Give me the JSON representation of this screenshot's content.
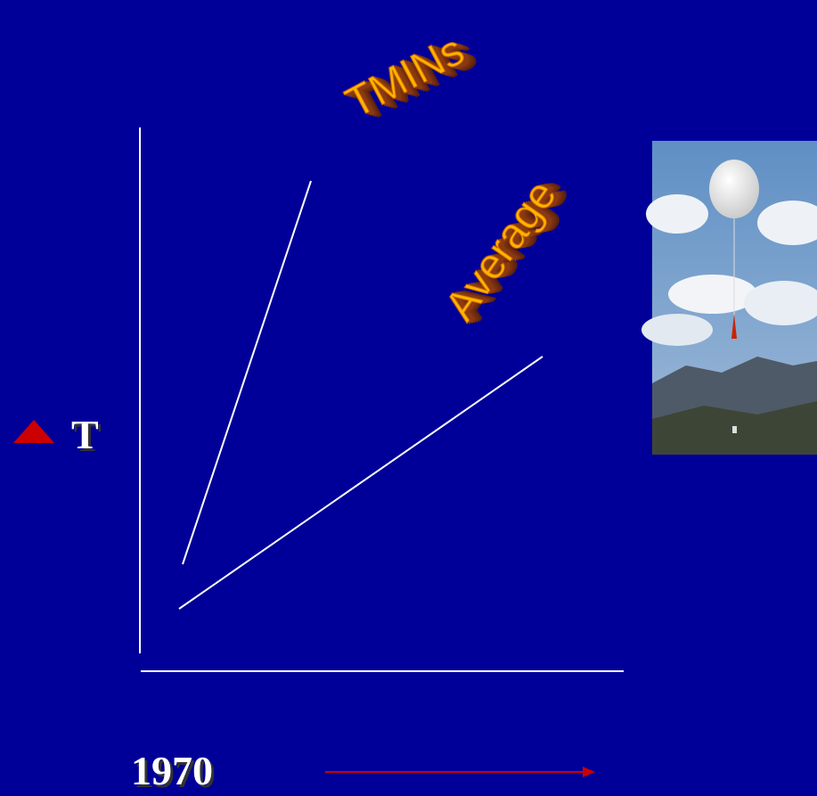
{
  "labels": {
    "tmins": "TMINs",
    "average": "Average",
    "y_axis": "T",
    "x_axis": "1970"
  }
}
